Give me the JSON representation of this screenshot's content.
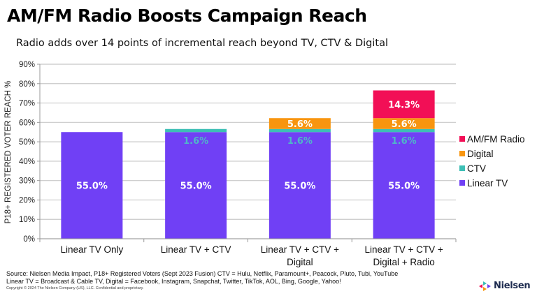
{
  "header": {
    "title": "AM/FM Radio Boosts Campaign Reach",
    "subtitle": "Radio adds over 14 points of incremental reach beyond TV, CTV & Digital"
  },
  "chart_data": {
    "type": "bar",
    "stacked": true,
    "title": "AM/FM Radio Boosts Campaign Reach",
    "subtitle": "Radio adds over 14 points of incremental reach beyond TV, CTV & Digital",
    "xlabel": "",
    "ylabel": "P18+ REGISTERED VOTER REACH %",
    "ylim": [
      0,
      90
    ],
    "yticks": [
      0,
      10,
      20,
      30,
      40,
      50,
      60,
      70,
      80,
      90
    ],
    "ytick_labels": [
      "0%",
      "10%",
      "20%",
      "30%",
      "40%",
      "50%",
      "60%",
      "70%",
      "80%",
      "90%"
    ],
    "grid": true,
    "legend_position": "right",
    "categories": [
      [
        "Linear TV Only"
      ],
      [
        "Linear TV + CTV"
      ],
      [
        "Linear TV + CTV +",
        "Digital"
      ],
      [
        "Linear TV + CTV +",
        "Digital + Radio"
      ]
    ],
    "series": [
      {
        "name": "Linear TV",
        "color": "#7040f5",
        "label_color": "#ffffff",
        "values": [
          55.0,
          55.0,
          55.0,
          55.0
        ],
        "labels": [
          "55.0%",
          "55.0%",
          "55.0%",
          "55.0%"
        ]
      },
      {
        "name": "CTV",
        "color": "#3dbfb5",
        "label_color": "#4fb7c8",
        "values": [
          0,
          1.6,
          1.6,
          1.6
        ],
        "labels": [
          "",
          "1.6%",
          "1.6%",
          "1.6%"
        ]
      },
      {
        "name": "Digital",
        "color": "#f8950f",
        "label_color": "#ffffff",
        "values": [
          0,
          0,
          5.6,
          5.6
        ],
        "labels": [
          "",
          "",
          "5.6%",
          "5.6%"
        ]
      },
      {
        "name": "AM/FM Radio",
        "color": "#f20f56",
        "label_color": "#ffffff",
        "values": [
          0,
          0,
          0,
          14.3
        ],
        "labels": [
          "",
          "",
          "",
          "14.3%"
        ]
      }
    ],
    "legend": [
      "AM/FM Radio",
      "Digital",
      "CTV",
      "Linear TV"
    ]
  },
  "footer": {
    "source_line1": "Source: Nielsen Media Impact, P18+ Registered Voters (Sept 2023 Fusion) CTV = Hulu, Netflix, Paramount+, Peacock, Pluto, Tubi, YouTube",
    "source_line2": "Linear TV = Broadcast & Cable TV, Digital = Facebook, Instagram, Snapchat, Twitter, TikTok, AOL, Bing, Google, Yahoo!",
    "copyright": "Copyright © 2024 The Nielsen Company (US), LLC. Confidential and proprietary.",
    "logo_text": "Nielsen"
  }
}
